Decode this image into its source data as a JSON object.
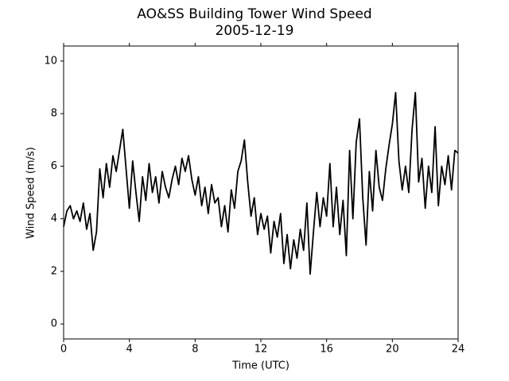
{
  "chart_data": {
    "type": "line",
    "title": "AO&SS Building Tower Wind Speed",
    "subtitle": "2005-12-19",
    "xlabel": "Time (UTC)",
    "ylabel": "Wind Speed (m/s)",
    "color": "#000000",
    "x": [
      0,
      0.2,
      0.4,
      0.6,
      0.8,
      1,
      1.2,
      1.4,
      1.6,
      1.8,
      2,
      2.2,
      2.4,
      2.6,
      2.8,
      3,
      3.2,
      3.4,
      3.6,
      3.8,
      4,
      4.2,
      4.4,
      4.6,
      4.8,
      5,
      5.2,
      5.4,
      5.6,
      5.8,
      6,
      6.2,
      6.4,
      6.6,
      6.8,
      7,
      7.2,
      7.4,
      7.6,
      7.8,
      8,
      8.2,
      8.4,
      8.6,
      8.8,
      9,
      9.2,
      9.4,
      9.6,
      9.8,
      10,
      10.2,
      10.4,
      10.6,
      10.8,
      11,
      11.2,
      11.4,
      11.6,
      11.8,
      12,
      12.2,
      12.4,
      12.6,
      12.8,
      13,
      13.2,
      13.4,
      13.6,
      13.8,
      14,
      14.2,
      14.4,
      14.6,
      14.8,
      15,
      15.2,
      15.4,
      15.6,
      15.8,
      16,
      16.2,
      16.4,
      16.6,
      16.8,
      17,
      17.2,
      17.4,
      17.6,
      17.8,
      18,
      18.2,
      18.4,
      18.6,
      18.8,
      19,
      19.2,
      19.4,
      19.6,
      19.8,
      20,
      20.2,
      20.4,
      20.6,
      20.8,
      21,
      21.2,
      21.4,
      21.6,
      21.8,
      22,
      22.2,
      22.4,
      22.6,
      22.8,
      23,
      23.2,
      23.4,
      23.6,
      23.8,
      24
    ],
    "values": [
      3.7,
      4.3,
      4.5,
      4.0,
      4.3,
      3.9,
      4.6,
      3.6,
      4.2,
      2.8,
      3.5,
      5.9,
      4.8,
      6.1,
      5.2,
      6.4,
      5.8,
      6.6,
      7.4,
      5.9,
      4.4,
      6.2,
      5.0,
      3.9,
      5.6,
      4.7,
      6.1,
      5.0,
      5.6,
      4.6,
      5.8,
      5.2,
      4.8,
      5.5,
      6.0,
      5.3,
      6.3,
      5.8,
      6.4,
      5.5,
      4.9,
      5.6,
      4.5,
      5.2,
      4.2,
      5.3,
      4.6,
      4.8,
      3.7,
      4.5,
      3.5,
      5.1,
      4.4,
      5.8,
      6.2,
      7.0,
      5.4,
      4.1,
      4.8,
      3.4,
      4.2,
      3.6,
      4.1,
      2.7,
      3.9,
      3.3,
      4.2,
      2.3,
      3.4,
      2.1,
      3.2,
      2.5,
      3.6,
      2.8,
      4.6,
      1.9,
      3.5,
      5.0,
      3.7,
      4.8,
      4.1,
      6.1,
      3.7,
      5.2,
      3.4,
      4.7,
      2.6,
      6.6,
      4.0,
      6.9,
      7.8,
      4.8,
      3.0,
      5.8,
      4.3,
      6.6,
      5.2,
      4.7,
      5.9,
      6.8,
      7.6,
      8.8,
      6.2,
      5.1,
      6.0,
      5.0,
      7.4,
      8.8,
      5.4,
      6.3,
      4.4,
      6.0,
      5.0,
      7.5,
      4.5,
      6.0,
      5.3,
      6.4,
      5.1,
      6.6,
      6.5
    ],
    "xlim": [
      0,
      24
    ],
    "xticks": [
      0,
      4,
      8,
      12,
      16,
      20,
      24
    ],
    "ylim": [
      -0.57,
      10.57
    ],
    "yticks": [
      0,
      2,
      4,
      6,
      8,
      10
    ]
  }
}
